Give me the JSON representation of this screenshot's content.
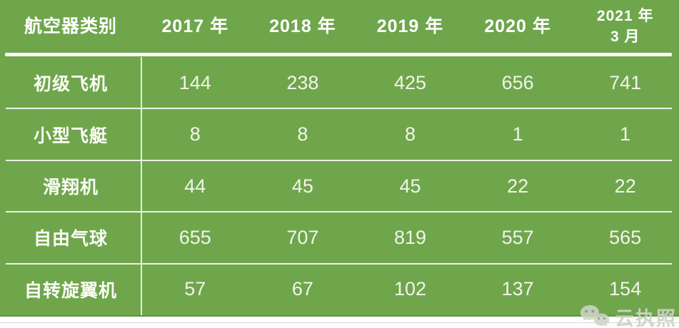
{
  "chart_data": {
    "type": "table",
    "title": "",
    "columns": [
      {
        "key": "category",
        "label": "航空器类别",
        "lines": [
          "航空器类别"
        ]
      },
      {
        "key": "2017",
        "label": "2017 年",
        "lines": [
          "2017 年"
        ]
      },
      {
        "key": "2018",
        "label": "2018 年",
        "lines": [
          "2018 年"
        ]
      },
      {
        "key": "2019",
        "label": "2019 年",
        "lines": [
          "2019 年"
        ]
      },
      {
        "key": "2020",
        "label": "2020 年",
        "lines": [
          "2020 年"
        ]
      },
      {
        "key": "2021-03",
        "label": "2021 年 3 月",
        "lines": [
          "2021 年",
          "3 月"
        ]
      }
    ],
    "rows": [
      {
        "category": "初级飞机",
        "values": [
          144,
          238,
          425,
          656,
          741
        ]
      },
      {
        "category": "小型飞艇",
        "values": [
          8,
          8,
          8,
          1,
          1
        ]
      },
      {
        "category": "滑翔机",
        "values": [
          44,
          45,
          45,
          22,
          22
        ]
      },
      {
        "category": "自由气球",
        "values": [
          655,
          707,
          819,
          557,
          565
        ]
      },
      {
        "category": "自转旋翼机",
        "values": [
          57,
          67,
          102,
          137,
          154
        ]
      }
    ]
  },
  "watermark": {
    "label": "云执照",
    "icon": "wechat-logo-icon"
  },
  "colors": {
    "table_green": "#6FA64C",
    "table_green_edge": "#5E9440",
    "grid_line": "#FFFFFF",
    "header_text": "#FFFFFF",
    "body_text": "#F2F4EA",
    "watermark_text": "#CDD3C5"
  }
}
